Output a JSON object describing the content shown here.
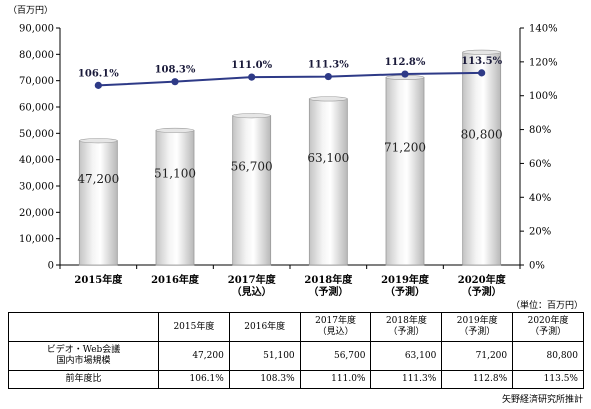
{
  "chart_data": {
    "type": "bar",
    "subtype": "bar+line combo",
    "left_axis_unit": "（百万円）",
    "categories": [
      [
        "2015年度"
      ],
      [
        "2016年度"
      ],
      [
        "2017年度",
        "（見込）"
      ],
      [
        "2018年度",
        "（予測）"
      ],
      [
        "2019年度",
        "（予測）"
      ],
      [
        "2020年度",
        "（予測）"
      ]
    ],
    "series": [
      {
        "values": [
          47200,
          51100,
          56700,
          63100,
          71200,
          80800
        ],
        "labels": [
          "47,200",
          "51,100",
          "56,700",
          "63,100",
          "71,200",
          "80,800"
        ]
      },
      {
        "values": [
          106.1,
          108.3,
          111.0,
          111.3,
          112.8,
          113.5
        ],
        "labels": [
          "106.1%",
          "108.3%",
          "111.0%",
          "111.3%",
          "112.8%",
          "113.5%"
        ]
      }
    ],
    "y_left": {
      "min": 0,
      "max": 90000,
      "ticks": [
        "0",
        "10,000",
        "20,000",
        "30,000",
        "40,000",
        "50,000",
        "60,000",
        "70,000",
        "80,000",
        "90,000"
      ]
    },
    "y_right": {
      "min": 0,
      "max": 140,
      "ticks": [
        "0%",
        "20%",
        "40%",
        "60%",
        "80%",
        "100%",
        "120%",
        "140%"
      ]
    },
    "colors": {
      "bar_light": "#ffffff",
      "bar_shadow": "#c8c8c8",
      "line": "#2e3a87",
      "marker": "#2e3a87"
    }
  },
  "table": {
    "unit_note": "（単位：百万円）",
    "headers": [
      [
        "",
        ""
      ],
      [
        "2015年度",
        ""
      ],
      [
        "2016年度",
        ""
      ],
      [
        "2017年度",
        "（見込）"
      ],
      [
        "2018年度",
        "（予測）"
      ],
      [
        "2019年度",
        "（予測）"
      ],
      [
        "2020年度",
        "（予測）"
      ]
    ],
    "rows": [
      {
        "label": [
          "ビデオ・Web会議",
          "国内市場規模"
        ],
        "cells": [
          "47,200",
          "51,100",
          "56,700",
          "63,100",
          "71,200",
          "80,800"
        ]
      },
      {
        "label": [
          "前年度比"
        ],
        "cells": [
          "106.1%",
          "108.3%",
          "111.0%",
          "111.3%",
          "112.8%",
          "113.5%"
        ]
      }
    ]
  },
  "source": "矢野経済研究所推計"
}
